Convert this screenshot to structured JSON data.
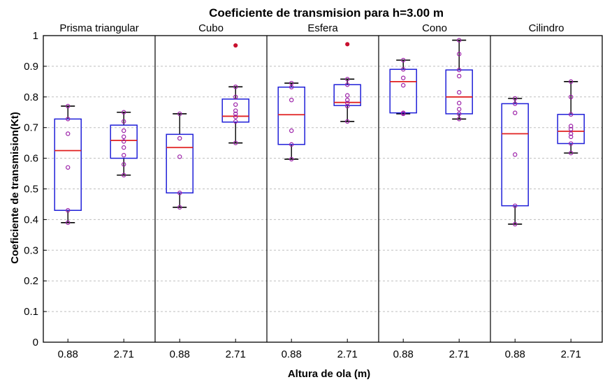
{
  "chart_data": {
    "type": "box",
    "title": "Coeficiente de transmision para h=3.00 m",
    "xlabel": "Altura de ola (m)",
    "ylabel": "Coeficiente de transmision(Kt)",
    "ylim": [
      0,
      1
    ],
    "yticks": [
      0,
      0.1,
      0.2,
      0.3,
      0.4,
      0.5,
      0.6,
      0.7,
      0.8,
      0.9,
      1
    ],
    "ytick_labels": [
      "0",
      "0.1",
      "0.2",
      "0.3",
      "0.4",
      "0.5",
      "0.6",
      "0.7",
      "0.8",
      "0.9",
      "1"
    ],
    "categories": [
      "0.88",
      "2.71"
    ],
    "grid": "horizontal-dashed",
    "colors": {
      "box": "#1f1fd8",
      "median": "#e02020",
      "whisker": "#000000",
      "points": "#9b1fa8",
      "outlier": "#c8102e",
      "grid": "#bfbfbf"
    },
    "panels": [
      {
        "name": "Prisma triangular",
        "boxes": [
          {
            "x": "0.88",
            "min": 0.39,
            "q1": 0.43,
            "median": 0.625,
            "q3": 0.728,
            "max": 0.77,
            "points": [
              0.39,
              0.43,
              0.57,
              0.68,
              0.728,
              0.77
            ],
            "outliers": []
          },
          {
            "x": "2.71",
            "min": 0.545,
            "q1": 0.6,
            "median": 0.658,
            "q3": 0.708,
            "max": 0.75,
            "points": [
              0.545,
              0.58,
              0.61,
              0.635,
              0.655,
              0.67,
              0.69,
              0.72,
              0.75
            ],
            "outliers": []
          }
        ]
      },
      {
        "name": "Cubo",
        "boxes": [
          {
            "x": "0.88",
            "min": 0.44,
            "q1": 0.487,
            "median": 0.635,
            "q3": 0.678,
            "max": 0.745,
            "points": [
              0.44,
              0.487,
              0.605,
              0.665,
              0.745
            ],
            "outliers": []
          },
          {
            "x": "2.71",
            "min": 0.65,
            "q1": 0.718,
            "median": 0.737,
            "q3": 0.793,
            "max": 0.833,
            "points": [
              0.65,
              0.72,
              0.735,
              0.745,
              0.755,
              0.775,
              0.8,
              0.833
            ],
            "outliers": [
              0.968
            ]
          }
        ]
      },
      {
        "name": "Esfera",
        "boxes": [
          {
            "x": "0.88",
            "min": 0.597,
            "q1": 0.645,
            "median": 0.742,
            "q3": 0.832,
            "max": 0.845,
            "points": [
              0.597,
              0.645,
              0.69,
              0.79,
              0.832,
              0.845
            ],
            "outliers": []
          },
          {
            "x": "2.71",
            "min": 0.72,
            "q1": 0.772,
            "median": 0.782,
            "q3": 0.84,
            "max": 0.858,
            "points": [
              0.72,
              0.77,
              0.78,
              0.79,
              0.805,
              0.84,
              0.858
            ],
            "outliers": [
              0.972
            ]
          }
        ]
      },
      {
        "name": "Cono",
        "boxes": [
          {
            "x": "0.88",
            "min": 0.745,
            "q1": 0.748,
            "median": 0.85,
            "q3": 0.89,
            "max": 0.92,
            "points": [
              0.745,
              0.748,
              0.838,
              0.862,
              0.89,
              0.92
            ],
            "outliers": []
          },
          {
            "x": "2.71",
            "min": 0.728,
            "q1": 0.745,
            "median": 0.8,
            "q3": 0.888,
            "max": 0.985,
            "points": [
              0.728,
              0.745,
              0.76,
              0.78,
              0.815,
              0.868,
              0.888,
              0.94,
              0.985
            ],
            "outliers": []
          }
        ]
      },
      {
        "name": "Cilindro",
        "boxes": [
          {
            "x": "0.88",
            "min": 0.385,
            "q1": 0.445,
            "median": 0.68,
            "q3": 0.778,
            "max": 0.795,
            "points": [
              0.385,
              0.445,
              0.612,
              0.748,
              0.778,
              0.795
            ],
            "outliers": []
          },
          {
            "x": "2.71",
            "min": 0.617,
            "q1": 0.648,
            "median": 0.688,
            "q3": 0.743,
            "max": 0.85,
            "points": [
              0.617,
              0.648,
              0.67,
              0.68,
              0.695,
              0.705,
              0.743,
              0.8,
              0.85
            ],
            "outliers": []
          }
        ]
      }
    ]
  }
}
